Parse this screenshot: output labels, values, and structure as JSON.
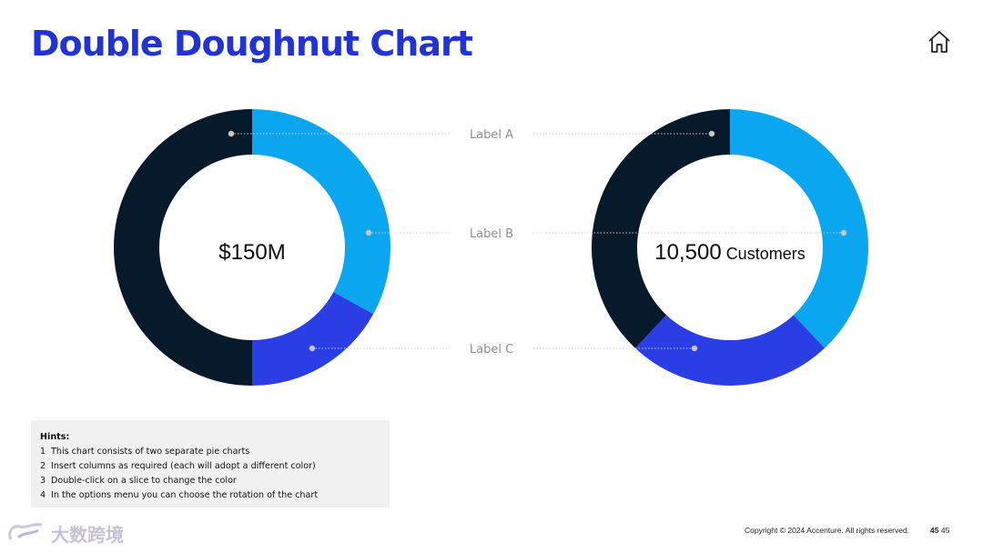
{
  "slide": {
    "title": "Double Doughnut Chart",
    "home_icon": "home-icon",
    "copyright": "Copyright © 2024 Accenture. All rights reserved.",
    "page_number_bold": "45",
    "page_number": "45",
    "watermark_text": "大数跨境"
  },
  "hints": {
    "title": "Hints:",
    "items": [
      {
        "num": "1",
        "text": "This chart consists of two separate pie charts"
      },
      {
        "num": "2",
        "text": "Insert columns as required (each will adopt a different color)"
      },
      {
        "num": "3",
        "text": "Double-click on a slice to change the color"
      },
      {
        "num": "4",
        "text": "In the options menu you can choose the rotation of the chart"
      }
    ]
  },
  "chart_data": [
    {
      "type": "pie",
      "style": "doughnut",
      "center_value": "$150M",
      "center_unit": "",
      "labels": [
        "Label A",
        "Label B",
        "Label C"
      ],
      "slices": [
        {
          "label": "Label B",
          "value": 33,
          "color": "#0aa6ef"
        },
        {
          "label": "Label C",
          "value": 17,
          "color": "#2a3ee6"
        },
        {
          "label": "Label A",
          "value": 50,
          "color": "#061a2b"
        }
      ]
    },
    {
      "type": "pie",
      "style": "doughnut",
      "center_value": "10,500",
      "center_unit": "Customers",
      "labels": [
        "Label A",
        "Label B",
        "Label C"
      ],
      "slices": [
        {
          "label": "Label B",
          "value": 38,
          "color": "#0aa6ef"
        },
        {
          "label": "Label C",
          "value": 24,
          "color": "#2a3ee6"
        },
        {
          "label": "Label A",
          "value": 38,
          "color": "#061a2b"
        }
      ]
    }
  ]
}
